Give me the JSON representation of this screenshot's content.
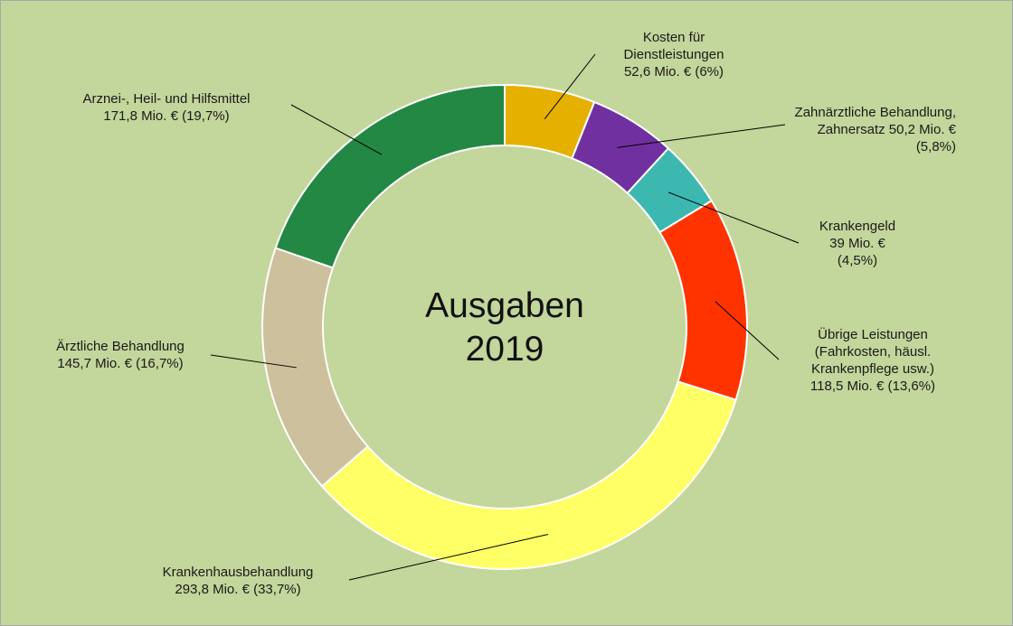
{
  "chart_data": {
    "type": "pie",
    "subtype": "donut",
    "center_label": [
      "Ausgaben",
      "2019"
    ],
    "legend": "none",
    "slices": [
      {
        "lines": [
          "Kosten für",
          "Dienstleistungen",
          "52,6 Mio. €   (6%)"
        ],
        "value": 52.6,
        "percent": 6.0,
        "color": "#e6b000"
      },
      {
        "lines": [
          "Zahnärztliche Behandlung,",
          "Zahnersatz   50,2 Mio. €",
          "(5,8%)"
        ],
        "value": 50.2,
        "percent": 5.8,
        "color": "#7030a0"
      },
      {
        "lines": [
          "Krankengeld",
          "39 Mio. €",
          "(4,5%)"
        ],
        "value": 39,
        "percent": 4.5,
        "color": "#3cb8b0"
      },
      {
        "lines": [
          "Übrige Leistungen",
          "(Fahrkosten, häusl.",
          "Krankenpflege usw.)",
          "118,5 Mio. €   (13,6%)"
        ],
        "value": 118.5,
        "percent": 13.6,
        "color": "#ff3300"
      },
      {
        "lines": [
          "Krankenhausbehandlung",
          "293,8 Mio. €   (33,7%)"
        ],
        "value": 293.8,
        "percent": 33.7,
        "color": "#ffff66"
      },
      {
        "lines": [
          "Ärztliche Behandlung",
          "145,7 Mio. €   (16,7%)"
        ],
        "value": 145.7,
        "percent": 16.7,
        "color": "#cdc09c"
      },
      {
        "lines": [
          "Arznei-, Heil- und Hilfsmittel",
          "171,8 Mio. €   (19,7%)"
        ],
        "value": 171.8,
        "percent": 19.7,
        "color": "#228844"
      }
    ]
  }
}
